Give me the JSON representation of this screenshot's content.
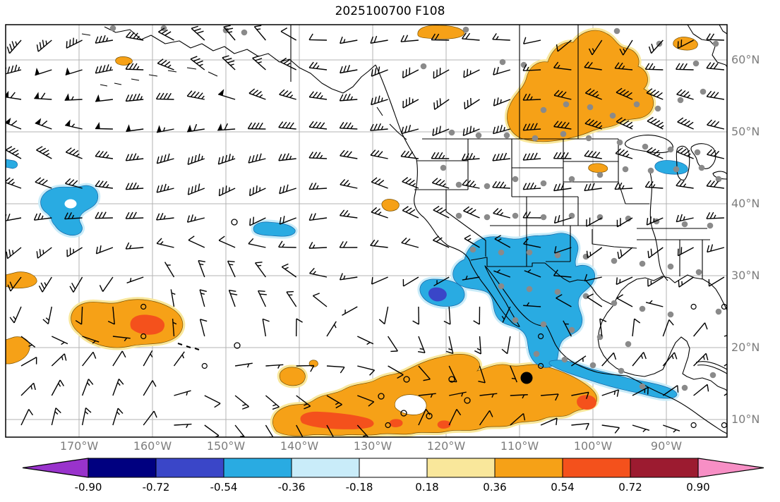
{
  "title": "2025100700 F108",
  "axes": {
    "lon_tick_labels": [
      "170°W",
      "160°W",
      "150°W",
      "140°W",
      "130°W",
      "120°W",
      "110°W",
      "100°W",
      "90°W"
    ],
    "lat_tick_labels": [
      "60°N",
      "50°N",
      "40°N",
      "30°N",
      "20°N",
      "10°N"
    ],
    "tick_label_color": "#7d7d7d"
  },
  "colorbar": {
    "tick_labels": [
      "-0.90",
      "-0.72",
      "-0.54",
      "-0.36",
      "-0.18",
      "0.18",
      "0.36",
      "0.54",
      "0.72",
      "0.90"
    ],
    "levels": [
      -0.9,
      -0.72,
      -0.54,
      -0.36,
      -0.18,
      0.18,
      0.36,
      0.54,
      0.72,
      0.9
    ],
    "segment_colors": [
      "#000080",
      "#3A46C8",
      "#29ABE2",
      "#C9ECF9",
      "#FFFFFF",
      "#F9E79B",
      "#F6A117",
      "#F4511C",
      "#9C1B30"
    ],
    "extend_left_color": "#9933CC",
    "extend_right_color": "#F78FC5",
    "outline_color": "#000000"
  },
  "map_style": {
    "grid_color": "#b3b3b3",
    "coast_color": "#000000",
    "station_dot_color": "#8a8a8a",
    "wind_barb_color": "#000000"
  },
  "chart_data": {
    "type": "heatmap",
    "title": "2025100700 F108",
    "description": "Forecast chart (F108 from the 2025-10-07 00Z cycle): wind barbs and gray station dots over North America and the eastern/central North Pacific with a shaded anomaly field.",
    "x_tick_labels": [
      "170°W",
      "160°W",
      "150°W",
      "140°W",
      "130°W",
      "120°W",
      "110°W",
      "100°W",
      "90°W"
    ],
    "y_tick_labels": [
      "60°N",
      "50°N",
      "40°N",
      "30°N",
      "20°N",
      "10°N"
    ],
    "lon_range_deg_west": [
      180,
      82
    ],
    "lat_range_deg_north": [
      7.5,
      65
    ],
    "grid": true,
    "colorbar_levels": [
      -0.9,
      -0.72,
      -0.54,
      -0.36,
      -0.18,
      0.18,
      0.36,
      0.54,
      0.72,
      0.9
    ],
    "colorbar_colors": [
      "#9933CC",
      "#000080",
      "#3A46C8",
      "#29ABE2",
      "#C9ECF9",
      "#FFFFFF",
      "#F9E79B",
      "#F6A117",
      "#F4511C",
      "#9C1B30",
      "#F78FC5"
    ],
    "colorbar_extend": "both",
    "shaded_regions": [
      {
        "value_range": "0.36 to 0.72",
        "color": "orange",
        "area": "central Canada, approx 48-62N 95-112W"
      },
      {
        "value_range": "0.36 to 0.72, cores > 0.54",
        "color": "orange with red cores",
        "area": "tropical eastern Pacific band, approx 8-17N 110-148W"
      },
      {
        "value_range": "0.36 to 0.72, core > 0.54",
        "color": "orange with red core",
        "area": "central Pacific, approx 19-23N 152-163W"
      },
      {
        "value_range": "-0.36 to -0.54",
        "color": "sky blue",
        "area": "southwestern US and western Mexico into the Gulf coast, approx 20-37N 98-118W"
      },
      {
        "value_range": "-0.36",
        "color": "sky blue",
        "area": "north Pacific, approx 38-42N 164-172W"
      },
      {
        "value_range": "-0.36",
        "color": "sky blue",
        "area": "approx 37N 139-143W"
      },
      {
        "value_range": "0.36",
        "color": "orange",
        "area": "small spots: north California coast ~40N, upper Midwest ~45N 101W, top-left Bering area, 20N near left edge"
      }
    ],
    "markers": {
      "solid_black_dot": "approx 16N 109W (tropical system position)",
      "gray_dots": "observation/station sites scattered across the continent",
      "open_circles": "small closed contours near the tropical band and mid-Pacific"
    },
    "overlays": [
      "wind barbs",
      "station dots",
      "filled anomaly contours",
      "coastlines and state/province borders"
    ]
  }
}
